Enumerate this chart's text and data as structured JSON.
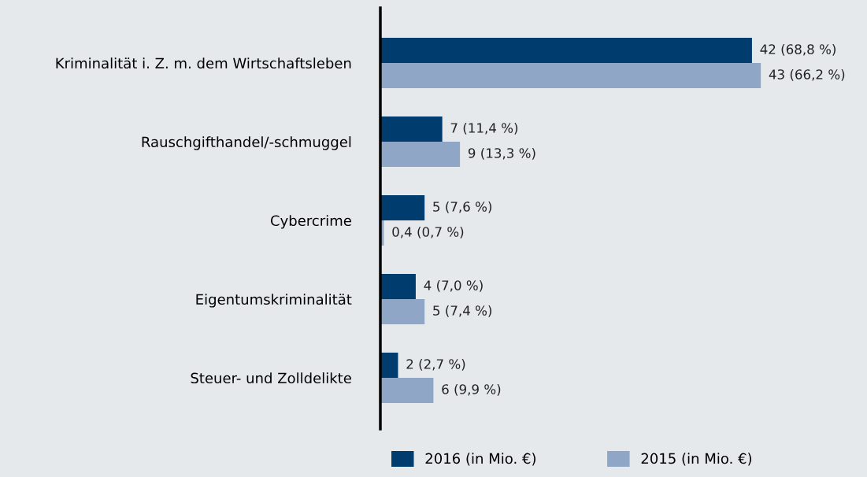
{
  "chart_data": {
    "type": "bar",
    "orientation": "horizontal",
    "categories": [
      "Kriminalität i. Z. m. dem Wirtschaftsleben",
      "Rauschgifthandel/-schmuggel",
      "Cybercrime",
      "Eigentumskriminalität",
      "Steuer- und Zolldelikte"
    ],
    "xlim": [
      0,
      55
    ],
    "series": [
      {
        "name": "2016 (in Mio. €)",
        "color": "#003d6e",
        "values": [
          42,
          7,
          5,
          4,
          2
        ],
        "value_labels": [
          "42 (68,8 %)",
          "7 (11,4 %)",
          "5 (7,6 %)",
          "4 (7,0 %)",
          "2 (2,7 %)"
        ]
      },
      {
        "name": "2015 (in Mio. €)",
        "color": "#8fa6c6",
        "values": [
          43,
          9,
          0.4,
          5,
          6
        ],
        "value_labels": [
          "43 (66,2 %)",
          "9 (13,3 %)",
          "0,4 (0,7 %)",
          "5 (7,4 %)",
          "6 (9,9 %)"
        ]
      }
    ],
    "legend": "bottom",
    "tick_labels": "y"
  }
}
